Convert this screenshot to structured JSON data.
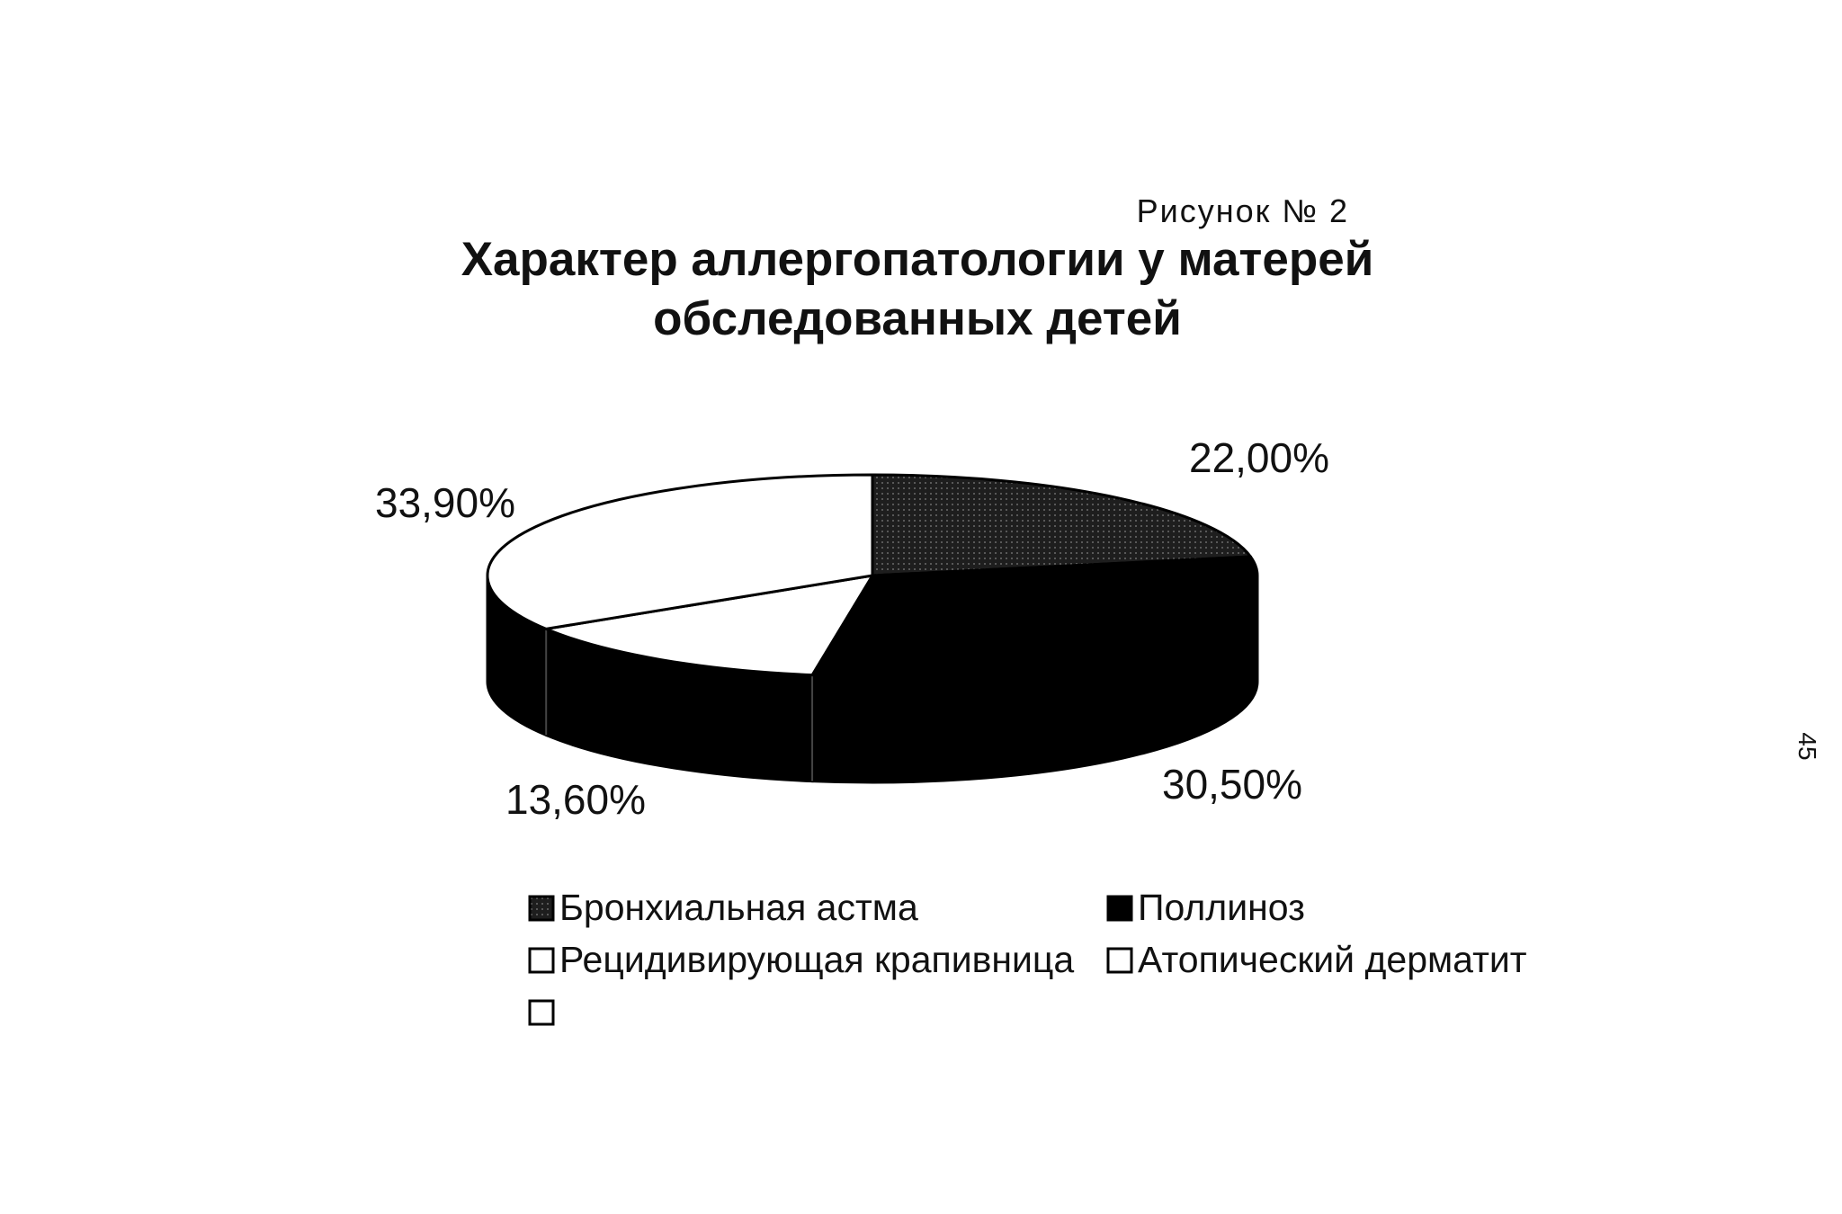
{
  "figure": {
    "caption": "Рисунок № 2"
  },
  "page_number": "45",
  "chart_data": {
    "type": "pie",
    "title": "Характер аллергопатологии у матерей обследованных детей",
    "title_lines": [
      "Характер аллергопатологии у матерей",
      "обследованных детей"
    ],
    "three_d": true,
    "legend_position": "bottom",
    "slices": [
      {
        "name": "Бронхиальная астма",
        "value": 22.0,
        "label": "22,00%",
        "color": "#2a2a2a"
      },
      {
        "name": "Поллиноз",
        "value": 30.5,
        "label": "30,50%",
        "color": "#000000"
      },
      {
        "name": "Рецидивирующая крапивница",
        "value": 13.6,
        "label": "13,60%",
        "color": "#ffffff"
      },
      {
        "name": "Атопический дерматит",
        "value": 33.9,
        "label": "33,90%",
        "color": "#ffffff"
      }
    ],
    "legend": [
      {
        "name": "Бронхиальная астма",
        "color": "#2a2a2a",
        "pattern": "dotted"
      },
      {
        "name": "Поллиноз",
        "color": "#000000",
        "pattern": "solid"
      },
      {
        "name": "Рецидивирующая крапивница",
        "color": "#ffffff",
        "pattern": "outline"
      },
      {
        "name": "Атопический дерматит",
        "color": "#ffffff",
        "pattern": "outline"
      },
      {
        "name": "",
        "color": "#ffffff",
        "pattern": "outline"
      }
    ]
  }
}
